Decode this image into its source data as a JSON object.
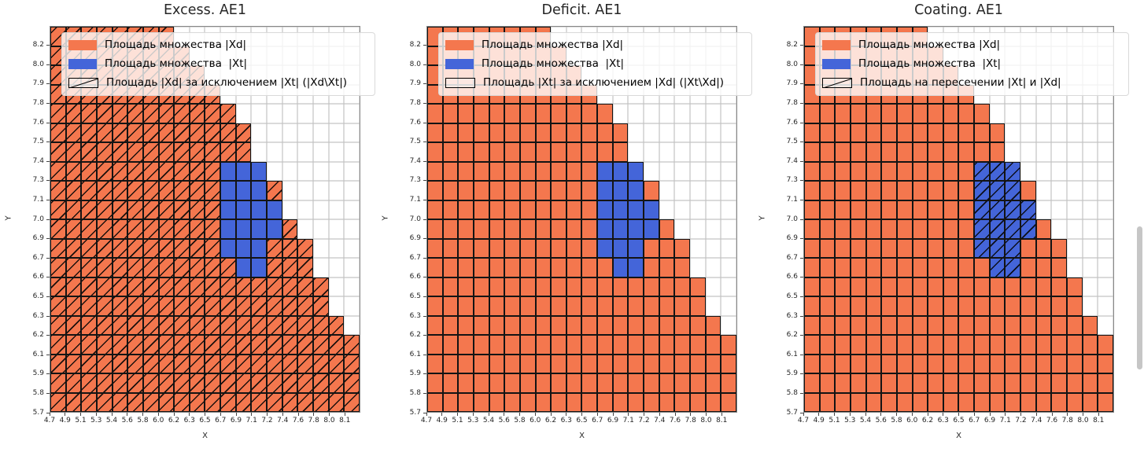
{
  "plots": [
    {
      "title": "Excess. AE1",
      "legend_third": "Площадь |Xd| за исключением |Xt| (|Xd\\Xt|)",
      "hatch_cells": "O",
      "legend_swatch_hatched": true
    },
    {
      "title": "Deficit. AE1",
      "legend_third": "Площадь |Xt| за исключением |Xd| (|Xt\\Xd|)",
      "hatch_cells": "",
      "legend_swatch_hatched": false
    },
    {
      "title": "Coating. AE1",
      "legend_third": "Площадь на пересечении |Xt| и |Xd|",
      "hatch_cells": "B",
      "legend_swatch_hatched": true
    }
  ],
  "legend": {
    "item1": "Площадь множества |Xd|",
    "item2": "Площадь множества  |Xt|"
  },
  "axes": {
    "x_label": "X",
    "y_label": "Y",
    "x_ticks": [
      "4.7",
      "4.9",
      "5.1",
      "5.3",
      "5.4",
      "5.6",
      "5.8",
      "6.0",
      "6.2",
      "6.3",
      "6.5",
      "6.7",
      "6.9",
      "7.1",
      "7.2",
      "7.4",
      "7.6",
      "7.8",
      "8.0",
      "8.1"
    ],
    "y_ticks": [
      "8.2",
      "8.0",
      "7.9",
      "7.8",
      "7.6",
      "7.5",
      "7.4",
      "7.3",
      "7.1",
      "7.0",
      "6.9",
      "6.7",
      "6.6",
      "6.5",
      "6.3",
      "6.2",
      "6.1",
      "5.9",
      "5.8",
      "5.7"
    ]
  },
  "colors": {
    "xd": "#F4774E",
    "xt": "#4465D9",
    "cell_border": "#141414",
    "grid_line": "#c3c3c3",
    "hatch": "#000000"
  },
  "chart_data": {
    "type": "heatmap",
    "title": "Set areas |Xd| and |Xt| on a 20x20 cell grid, three subplots sharing identical data",
    "x_categories": [
      "4.7",
      "4.9",
      "5.1",
      "5.3",
      "5.4",
      "5.6",
      "5.8",
      "6.0",
      "6.2",
      "6.3",
      "6.5",
      "6.7",
      "6.9",
      "7.1",
      "7.2",
      "7.4",
      "7.6",
      "7.8",
      "8.0",
      "8.1"
    ],
    "y_categories_top_to_bottom": [
      "8.2",
      "8.0",
      "7.9",
      "7.8",
      "7.6",
      "7.5",
      "7.4",
      "7.3",
      "7.1",
      "7.0",
      "6.9",
      "6.7",
      "6.6",
      "6.5",
      "6.3",
      "6.2",
      "6.1",
      "5.9",
      "5.8",
      "5.7"
    ],
    "cell_codes": {
      "O": "set |Xd| (orange)",
      "B": "set |Xt| (blue)",
      ".": "empty (white)"
    },
    "grid_rows_top_to_bottom": [
      "OOOOOOOO............",
      "OOOOOOOOO...........",
      "OOOOOOOOOO..........",
      "OOOOOOOOOOO.........",
      "OOOOOOOOOOOO........",
      "OOOOOOOOOOOOO.......",
      "OOOOOOOOOOOOO.......",
      "OOOOOOOOOOOBBB......",
      "OOOOOOOOOOOBBBO.....",
      "OOOOOOOOOOOBBBB.....",
      "OOOOOOOOOOOBBBBO....",
      "OOOOOOOOOOOBBBOOO...",
      "OOOOOOOOOOOOBBOOO...",
      "OOOOOOOOOOOOOOOOOO..",
      "OOOOOOOOOOOOOOOOOO..",
      "OOOOOOOOOOOOOOOOOOO.",
      "OOOOOOOOOOOOOOOOOOOO",
      "OOOOOOOOOOOOOOOOOOOO",
      "OOOOOOOOOOOOOOOOOOOO",
      "OOOOOOOOOOOOOOOOOOOO"
    ],
    "subplot_hatching": [
      {
        "title": "Excess. AE1",
        "hatched_cells": "O"
      },
      {
        "title": "Deficit. AE1",
        "hatched_cells": "none"
      },
      {
        "title": "Coating. AE1",
        "hatched_cells": "B"
      }
    ],
    "legend_position": "upper left",
    "grid": true
  }
}
